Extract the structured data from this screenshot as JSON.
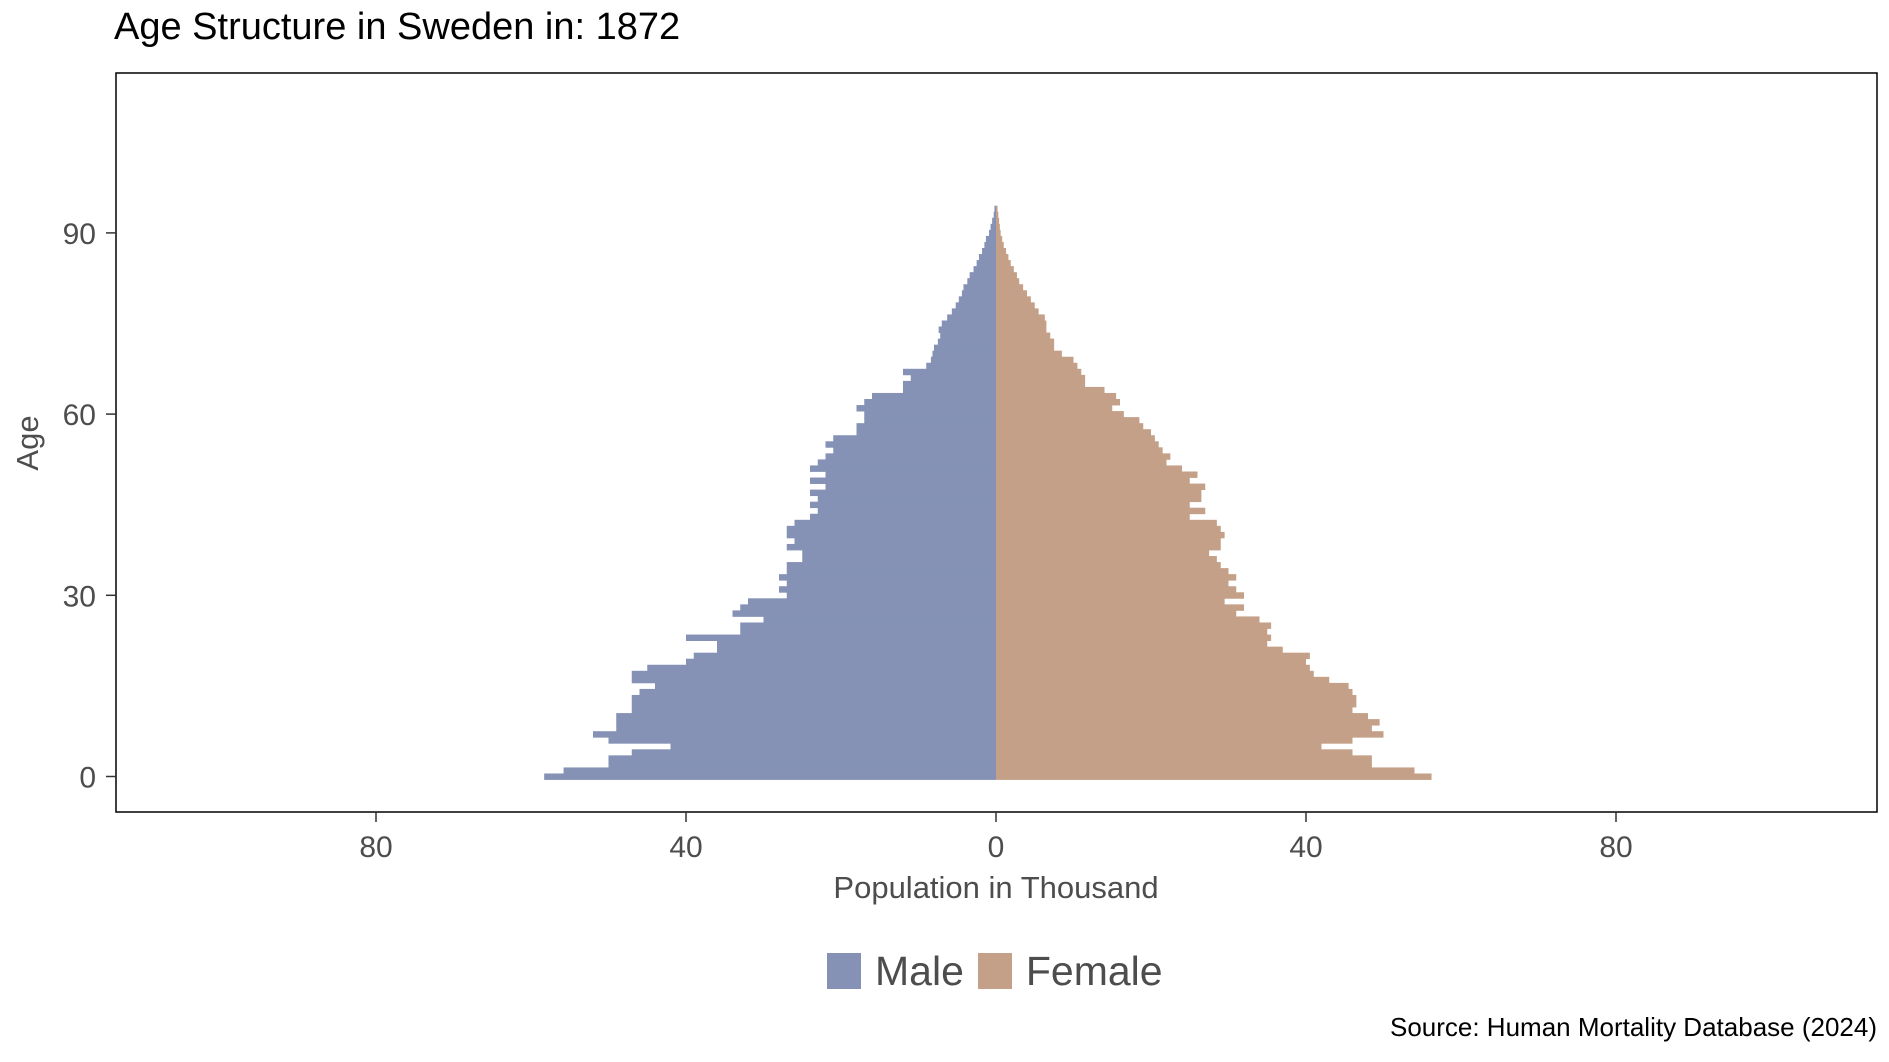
{
  "chart_data": {
    "type": "bar",
    "orientation": "horizontal-population-pyramid",
    "title": "Age Structure in Sweden in: 1872",
    "xlabel": "Population in Thousand",
    "ylabel": "Age",
    "xlim": [
      -80,
      80
    ],
    "ylim": [
      0,
      110
    ],
    "x_ticks": [
      -80,
      -40,
      0,
      40,
      80
    ],
    "x_tick_labels": [
      "80",
      "40",
      "0",
      "40",
      "80"
    ],
    "y_ticks": [
      0,
      30,
      60,
      90
    ],
    "y_tick_labels": [
      "0",
      "30",
      "60",
      "90"
    ],
    "grid": false,
    "legend_position": "bottom",
    "ages": [
      0,
      1,
      2,
      3,
      4,
      5,
      6,
      7,
      8,
      9,
      10,
      11,
      12,
      13,
      14,
      15,
      16,
      17,
      18,
      19,
      20,
      21,
      22,
      23,
      24,
      25,
      26,
      27,
      28,
      29,
      30,
      31,
      32,
      33,
      34,
      35,
      36,
      37,
      38,
      39,
      40,
      41,
      42,
      43,
      44,
      45,
      46,
      47,
      48,
      49,
      50,
      51,
      52,
      53,
      54,
      55,
      56,
      57,
      58,
      59,
      60,
      61,
      62,
      63,
      64,
      65,
      66,
      67,
      68,
      69,
      70,
      71,
      72,
      73,
      74,
      75,
      76,
      77,
      78,
      79,
      80,
      81,
      82,
      83,
      84,
      85,
      86,
      87,
      88,
      89,
      90,
      91,
      92,
      93,
      94
    ],
    "series": [
      {
        "name": "Male",
        "color": "#8592b6",
        "values": [
          58.3,
          55.8,
          50.0,
          50.0,
          47.0,
          42.0,
          50.0,
          52.0,
          49.0,
          49.0,
          49.0,
          47.0,
          47.0,
          47.0,
          46.0,
          44.0,
          47.0,
          47.0,
          45.0,
          40.0,
          39.0,
          36.0,
          36.0,
          40.0,
          33.0,
          33.0,
          30.0,
          34.0,
          33.0,
          32.0,
          27.0,
          28.0,
          27.0,
          28.0,
          27.0,
          27.0,
          25.0,
          25.0,
          27.0,
          26.0,
          27.0,
          27.0,
          26.0,
          24.0,
          23.0,
          24.0,
          23.0,
          24.0,
          22.0,
          24.0,
          22.0,
          24.0,
          23.0,
          22.0,
          21.0,
          22.0,
          21.0,
          18.0,
          18.0,
          17.0,
          17.0,
          18.0,
          17.0,
          16.0,
          12.0,
          12.0,
          11.0,
          12.0,
          9.0,
          8.4,
          8.2,
          8.0,
          7.5,
          7.2,
          7.4,
          7.0,
          6.3,
          5.7,
          5.2,
          4.8,
          4.4,
          4.2,
          3.7,
          3.4,
          2.9,
          2.5,
          2.2,
          1.8,
          1.5,
          1.3,
          0.9,
          0.7,
          0.5,
          0.3,
          0.2
        ]
      },
      {
        "name": "Female",
        "color": "#c4a088",
        "values": [
          56.2,
          54.0,
          48.5,
          48.5,
          46.0,
          42.0,
          46.0,
          50.0,
          48.5,
          49.5,
          48.0,
          46.0,
          46.5,
          46.5,
          46.0,
          45.5,
          43.0,
          41.0,
          40.5,
          40.0,
          40.5,
          37.0,
          35.0,
          35.5,
          35.0,
          35.5,
          34.0,
          31.0,
          32.0,
          29.5,
          32.0,
          31.0,
          30.0,
          31.0,
          30.0,
          29.0,
          28.5,
          27.5,
          29.0,
          29.0,
          29.5,
          29.0,
          28.5,
          25.0,
          27.0,
          25.0,
          26.5,
          26.5,
          27.0,
          25.0,
          26.0,
          24.0,
          22.0,
          22.5,
          21.5,
          21.0,
          20.5,
          20.0,
          19.0,
          18.5,
          16.5,
          15.0,
          16.0,
          15.5,
          14.0,
          11.5,
          11.5,
          11.0,
          10.5,
          10.0,
          8.5,
          7.5,
          7.5,
          7.0,
          6.5,
          6.5,
          6.3,
          5.5,
          5.0,
          4.5,
          4.0,
          3.5,
          3.0,
          2.7,
          2.3,
          1.9,
          1.6,
          1.3,
          1.0,
          0.8,
          0.6,
          0.5,
          0.4,
          0.3,
          0.2
        ]
      }
    ]
  },
  "legend": {
    "male_label": "Male",
    "female_label": "Female"
  },
  "source": "Source: Human Mortality Database (2024)"
}
